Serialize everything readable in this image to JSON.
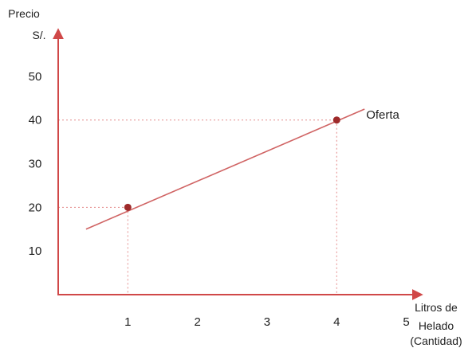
{
  "chart_data": {
    "type": "line",
    "ylabel_lines": [
      "Precio",
      "S/."
    ],
    "xlabel_lines": [
      "Litros de",
      "Helado",
      "(Cantidad)"
    ],
    "x_ticks": [
      "1",
      "2",
      "3",
      "4",
      "5"
    ],
    "y_ticks": [
      "10",
      "20",
      "30",
      "40",
      "50"
    ],
    "xlim": [
      0,
      5.6
    ],
    "ylim": [
      0,
      58
    ],
    "series": [
      {
        "name": "Oferta",
        "line": [
          [
            0.4,
            15
          ],
          [
            4.4,
            42.5
          ]
        ],
        "points": [
          [
            1,
            20
          ],
          [
            4,
            40
          ]
        ]
      }
    ],
    "reference_lines": true,
    "colors": {
      "axis": "#d04848",
      "line": "#d06464",
      "point": "#9e2a2a",
      "guide": "#e48a8a",
      "text": "#1f1f1f"
    }
  }
}
